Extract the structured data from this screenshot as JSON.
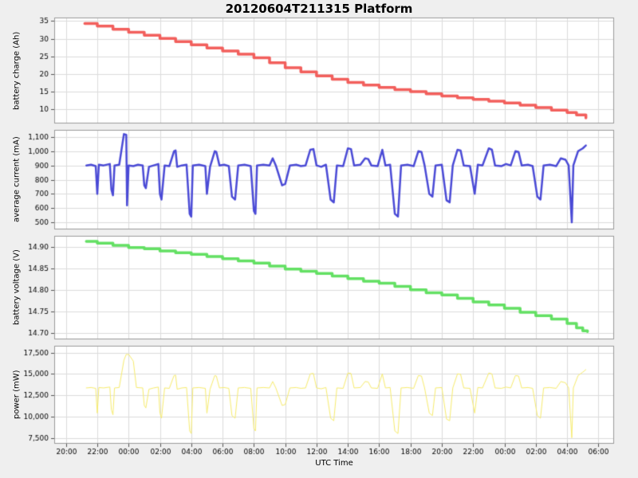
{
  "title": "20120604T211315 Platform",
  "x_axis": {
    "label": "UTC Time",
    "tick_values": [
      0,
      2,
      4,
      6,
      8,
      10,
      12,
      14,
      16,
      18,
      20,
      22,
      24,
      26,
      28,
      30,
      32,
      34
    ],
    "tick_labels": [
      "20:00",
      "22:00",
      "00:00",
      "02:00",
      "04:00",
      "06:00",
      "08:00",
      "10:00",
      "12:00",
      "14:00",
      "16:00",
      "18:00",
      "20:00",
      "22:00",
      "00:00",
      "02:00",
      "04:00",
      "06:00"
    ]
  },
  "xlim": [
    -0.75,
    35
  ],
  "chart_data": [
    {
      "type": "line",
      "name": "battery charge",
      "ylabel": "battery charge (Ah)",
      "color": "#f25f5c",
      "linewidth": 3.5,
      "step": true,
      "ylim": [
        6,
        36
      ],
      "yticks": [
        10,
        15,
        20,
        25,
        30,
        35
      ],
      "ytick_labels": [
        "10",
        "15",
        "20",
        "25",
        "30",
        "35"
      ],
      "points": [
        [
          1.2,
          34.3
        ],
        [
          2,
          33.6
        ],
        [
          3,
          32.7
        ],
        [
          4,
          31.8
        ],
        [
          5,
          31.0
        ],
        [
          6,
          30.1
        ],
        [
          7,
          29.2
        ],
        [
          8,
          28.3
        ],
        [
          9,
          27.4
        ],
        [
          10,
          26.5
        ],
        [
          11,
          25.6
        ],
        [
          12,
          24.6
        ],
        [
          13,
          23.2
        ],
        [
          14,
          21.8
        ],
        [
          15,
          20.6
        ],
        [
          16,
          19.5
        ],
        [
          17,
          18.5
        ],
        [
          18,
          17.6
        ],
        [
          19,
          16.9
        ],
        [
          20,
          16.2
        ],
        [
          21,
          15.6
        ],
        [
          22,
          15.0
        ],
        [
          23,
          14.4
        ],
        [
          24,
          13.8
        ],
        [
          25,
          13.3
        ],
        [
          26,
          12.8
        ],
        [
          27,
          12.3
        ],
        [
          28,
          11.8
        ],
        [
          29,
          11.2
        ],
        [
          30,
          10.5
        ],
        [
          31,
          9.8
        ],
        [
          32,
          9.1
        ],
        [
          32.6,
          8.4
        ],
        [
          33.2,
          7.6
        ]
      ]
    },
    {
      "type": "line",
      "name": "average current",
      "ylabel": "average current (mA)",
      "color": "#4a4ad6",
      "linewidth": 2.5,
      "step": false,
      "ylim": [
        450,
        1150
      ],
      "yticks": [
        500,
        600,
        700,
        800,
        900,
        1000,
        1100
      ],
      "ytick_labels": [
        "500",
        "600",
        "700",
        "800",
        "900",
        "1,000",
        "1,100"
      ],
      "points": [
        [
          1.3,
          900
        ],
        [
          1.6,
          905
        ],
        [
          1.9,
          895
        ],
        [
          2.0,
          700
        ],
        [
          2.1,
          905
        ],
        [
          2.4,
          900
        ],
        [
          2.8,
          910
        ],
        [
          2.9,
          730
        ],
        [
          3.0,
          690
        ],
        [
          3.1,
          900
        ],
        [
          3.4,
          905
        ],
        [
          3.7,
          1120
        ],
        [
          3.85,
          1115
        ],
        [
          3.9,
          620
        ],
        [
          4.0,
          900
        ],
        [
          4.3,
          895
        ],
        [
          4.6,
          905
        ],
        [
          4.9,
          900
        ],
        [
          5.0,
          760
        ],
        [
          5.1,
          740
        ],
        [
          5.3,
          890
        ],
        [
          5.6,
          900
        ],
        [
          5.9,
          910
        ],
        [
          6.0,
          700
        ],
        [
          6.1,
          660
        ],
        [
          6.3,
          900
        ],
        [
          6.6,
          895
        ],
        [
          6.9,
          1000
        ],
        [
          7.0,
          1005
        ],
        [
          7.1,
          890
        ],
        [
          7.4,
          900
        ],
        [
          7.7,
          905
        ],
        [
          7.9,
          560
        ],
        [
          8.0,
          540
        ],
        [
          8.1,
          900
        ],
        [
          8.5,
          905
        ],
        [
          8.9,
          895
        ],
        [
          9.0,
          700
        ],
        [
          9.2,
          890
        ],
        [
          9.5,
          1000
        ],
        [
          9.6,
          995
        ],
        [
          9.8,
          900
        ],
        [
          10.1,
          905
        ],
        [
          10.4,
          895
        ],
        [
          10.6,
          680
        ],
        [
          10.8,
          660
        ],
        [
          11.0,
          900
        ],
        [
          11.4,
          905
        ],
        [
          11.8,
          895
        ],
        [
          12.0,
          580
        ],
        [
          12.1,
          560
        ],
        [
          12.2,
          900
        ],
        [
          12.6,
          905
        ],
        [
          13.0,
          900
        ],
        [
          13.2,
          950
        ],
        [
          13.4,
          900
        ],
        [
          13.8,
          760
        ],
        [
          14.0,
          770
        ],
        [
          14.3,
          900
        ],
        [
          14.7,
          905
        ],
        [
          15.0,
          895
        ],
        [
          15.3,
          900
        ],
        [
          15.6,
          1010
        ],
        [
          15.8,
          1015
        ],
        [
          16.0,
          900
        ],
        [
          16.3,
          890
        ],
        [
          16.6,
          905
        ],
        [
          16.9,
          660
        ],
        [
          17.1,
          640
        ],
        [
          17.3,
          900
        ],
        [
          17.7,
          895
        ],
        [
          18.0,
          1020
        ],
        [
          18.2,
          1015
        ],
        [
          18.4,
          900
        ],
        [
          18.8,
          905
        ],
        [
          19.1,
          950
        ],
        [
          19.3,
          945
        ],
        [
          19.5,
          900
        ],
        [
          19.9,
          895
        ],
        [
          20.2,
          1010
        ],
        [
          20.4,
          900
        ],
        [
          20.7,
          905
        ],
        [
          21.0,
          560
        ],
        [
          21.2,
          540
        ],
        [
          21.4,
          900
        ],
        [
          21.8,
          905
        ],
        [
          22.2,
          895
        ],
        [
          22.5,
          1000
        ],
        [
          22.7,
          995
        ],
        [
          22.9,
          900
        ],
        [
          23.2,
          700
        ],
        [
          23.4,
          680
        ],
        [
          23.6,
          900
        ],
        [
          24.0,
          905
        ],
        [
          24.3,
          655
        ],
        [
          24.5,
          640
        ],
        [
          24.7,
          900
        ],
        [
          25.0,
          1010
        ],
        [
          25.2,
          1005
        ],
        [
          25.4,
          900
        ],
        [
          25.8,
          895
        ],
        [
          26.1,
          700
        ],
        [
          26.3,
          905
        ],
        [
          26.6,
          900
        ],
        [
          27.0,
          1020
        ],
        [
          27.2,
          1010
        ],
        [
          27.4,
          900
        ],
        [
          27.8,
          895
        ],
        [
          28.1,
          910
        ],
        [
          28.4,
          900
        ],
        [
          28.7,
          1000
        ],
        [
          28.9,
          995
        ],
        [
          29.1,
          900
        ],
        [
          29.5,
          905
        ],
        [
          29.8,
          895
        ],
        [
          30.1,
          680
        ],
        [
          30.3,
          660
        ],
        [
          30.5,
          900
        ],
        [
          30.9,
          905
        ],
        [
          31.3,
          895
        ],
        [
          31.6,
          950
        ],
        [
          31.9,
          940
        ],
        [
          32.1,
          900
        ],
        [
          32.3,
          500
        ],
        [
          32.4,
          900
        ],
        [
          32.7,
          1000
        ],
        [
          33.0,
          1020
        ],
        [
          33.2,
          1040
        ]
      ]
    },
    {
      "type": "line",
      "name": "battery voltage",
      "ylabel": "battery voltage (V)",
      "color": "#63e063",
      "linewidth": 3.5,
      "step": true,
      "ylim": [
        14.685,
        14.925
      ],
      "yticks": [
        14.7,
        14.75,
        14.8,
        14.85,
        14.9
      ],
      "ytick_labels": [
        "14.70",
        "14.75",
        "14.80",
        "14.85",
        "14.90"
      ],
      "points": [
        [
          1.3,
          14.912
        ],
        [
          2,
          14.908
        ],
        [
          3,
          14.903
        ],
        [
          4,
          14.898
        ],
        [
          5,
          14.895
        ],
        [
          6,
          14.89
        ],
        [
          7,
          14.886
        ],
        [
          8,
          14.882
        ],
        [
          9,
          14.877
        ],
        [
          10,
          14.872
        ],
        [
          11,
          14.867
        ],
        [
          12,
          14.862
        ],
        [
          13,
          14.855
        ],
        [
          14,
          14.848
        ],
        [
          15,
          14.843
        ],
        [
          16,
          14.838
        ],
        [
          17,
          14.832
        ],
        [
          18,
          14.826
        ],
        [
          19,
          14.82
        ],
        [
          20,
          14.815
        ],
        [
          21,
          14.808
        ],
        [
          22,
          14.8
        ],
        [
          23,
          14.793
        ],
        [
          24,
          14.788
        ],
        [
          25,
          14.78
        ],
        [
          26,
          14.772
        ],
        [
          27,
          14.765
        ],
        [
          28,
          14.757
        ],
        [
          29,
          14.748
        ],
        [
          30,
          14.74
        ],
        [
          31,
          14.732
        ],
        [
          32,
          14.722
        ],
        [
          32.6,
          14.712
        ],
        [
          33.0,
          14.705
        ],
        [
          33.3,
          14.703
        ]
      ]
    },
    {
      "type": "line",
      "name": "power",
      "ylabel": "power (mW)",
      "color": "#f7ec6e",
      "linewidth": 1,
      "step": false,
      "ylim": [
        6800,
        18300
      ],
      "yticks": [
        7500,
        10000,
        12500,
        15000,
        17500
      ],
      "ytick_labels": [
        "7,500",
        "10,000",
        "12,500",
        "15,000",
        "17,500"
      ],
      "points": [
        [
          1.3,
          13350
        ],
        [
          1.6,
          13400
        ],
        [
          1.9,
          13300
        ],
        [
          2.0,
          10400
        ],
        [
          2.1,
          13400
        ],
        [
          2.4,
          13350
        ],
        [
          2.8,
          13450
        ],
        [
          2.9,
          10800
        ],
        [
          3.0,
          10200
        ],
        [
          3.1,
          13350
        ],
        [
          3.4,
          13400
        ],
        [
          3.7,
          16600
        ],
        [
          3.85,
          17300
        ],
        [
          3.9,
          17250
        ],
        [
          4.0,
          17300
        ],
        [
          4.3,
          16500
        ],
        [
          4.5,
          13400
        ],
        [
          4.9,
          13350
        ],
        [
          5.0,
          11300
        ],
        [
          5.1,
          11000
        ],
        [
          5.3,
          13200
        ],
        [
          5.6,
          13350
        ],
        [
          5.9,
          13450
        ],
        [
          6.0,
          10400
        ],
        [
          6.1,
          9800
        ],
        [
          6.3,
          13350
        ],
        [
          6.6,
          13300
        ],
        [
          6.9,
          14800
        ],
        [
          7.0,
          14850
        ],
        [
          7.1,
          13200
        ],
        [
          7.4,
          13350
        ],
        [
          7.7,
          13400
        ],
        [
          7.9,
          8300
        ],
        [
          8.0,
          8000
        ],
        [
          8.1,
          13350
        ],
        [
          8.5,
          13400
        ],
        [
          8.9,
          13300
        ],
        [
          9.0,
          10400
        ],
        [
          9.2,
          13200
        ],
        [
          9.5,
          14800
        ],
        [
          9.6,
          14750
        ],
        [
          9.8,
          13350
        ],
        [
          10.1,
          13400
        ],
        [
          10.4,
          13300
        ],
        [
          10.6,
          10100
        ],
        [
          10.8,
          9800
        ],
        [
          11.0,
          13350
        ],
        [
          11.4,
          13400
        ],
        [
          11.8,
          13300
        ],
        [
          12.0,
          8600
        ],
        [
          12.1,
          8300
        ],
        [
          12.2,
          13350
        ],
        [
          12.6,
          13400
        ],
        [
          13.0,
          13350
        ],
        [
          13.2,
          14100
        ],
        [
          13.4,
          13350
        ],
        [
          13.8,
          11300
        ],
        [
          14.0,
          11400
        ],
        [
          14.3,
          13350
        ],
        [
          14.7,
          13400
        ],
        [
          15.0,
          13300
        ],
        [
          15.3,
          13350
        ],
        [
          15.6,
          15000
        ],
        [
          15.8,
          15050
        ],
        [
          16.0,
          13350
        ],
        [
          16.3,
          13250
        ],
        [
          16.6,
          13400
        ],
        [
          16.9,
          9800
        ],
        [
          17.1,
          9500
        ],
        [
          17.3,
          13350
        ],
        [
          17.7,
          13300
        ],
        [
          18.0,
          15100
        ],
        [
          18.2,
          15050
        ],
        [
          18.4,
          13350
        ],
        [
          18.8,
          13400
        ],
        [
          19.1,
          14100
        ],
        [
          19.3,
          14050
        ],
        [
          19.5,
          13350
        ],
        [
          19.9,
          13300
        ],
        [
          20.2,
          15000
        ],
        [
          20.4,
          13350
        ],
        [
          20.7,
          13400
        ],
        [
          21.0,
          8300
        ],
        [
          21.2,
          8000
        ],
        [
          21.4,
          13350
        ],
        [
          21.8,
          13400
        ],
        [
          22.2,
          13300
        ],
        [
          22.5,
          14800
        ],
        [
          22.7,
          14750
        ],
        [
          22.9,
          13350
        ],
        [
          23.2,
          10400
        ],
        [
          23.4,
          10100
        ],
        [
          23.6,
          13350
        ],
        [
          24.0,
          13400
        ],
        [
          24.3,
          9700
        ],
        [
          24.5,
          9500
        ],
        [
          24.7,
          13350
        ],
        [
          25.0,
          15000
        ],
        [
          25.2,
          14950
        ],
        [
          25.4,
          13350
        ],
        [
          25.8,
          13300
        ],
        [
          26.1,
          10400
        ],
        [
          26.3,
          13400
        ],
        [
          26.6,
          13350
        ],
        [
          27.0,
          15100
        ],
        [
          27.2,
          15000
        ],
        [
          27.4,
          13350
        ],
        [
          27.8,
          13300
        ],
        [
          28.1,
          13450
        ],
        [
          28.4,
          13350
        ],
        [
          28.7,
          14800
        ],
        [
          28.9,
          14750
        ],
        [
          29.1,
          13350
        ],
        [
          29.5,
          13400
        ],
        [
          29.8,
          13300
        ],
        [
          30.1,
          10100
        ],
        [
          30.3,
          9800
        ],
        [
          30.5,
          13350
        ],
        [
          30.9,
          13400
        ],
        [
          31.3,
          13300
        ],
        [
          31.6,
          14100
        ],
        [
          31.9,
          13950
        ],
        [
          32.1,
          13350
        ],
        [
          32.3,
          7500
        ],
        [
          32.4,
          13350
        ],
        [
          32.7,
          14800
        ],
        [
          33.0,
          15200
        ],
        [
          33.2,
          15500
        ]
      ]
    }
  ],
  "style": {
    "figure_bg": "#efefef",
    "plot_bg": "#ffffff",
    "grid_color": "#dcdcdc",
    "spine_color": "#9a9a9a",
    "tick_color": "#555555"
  }
}
